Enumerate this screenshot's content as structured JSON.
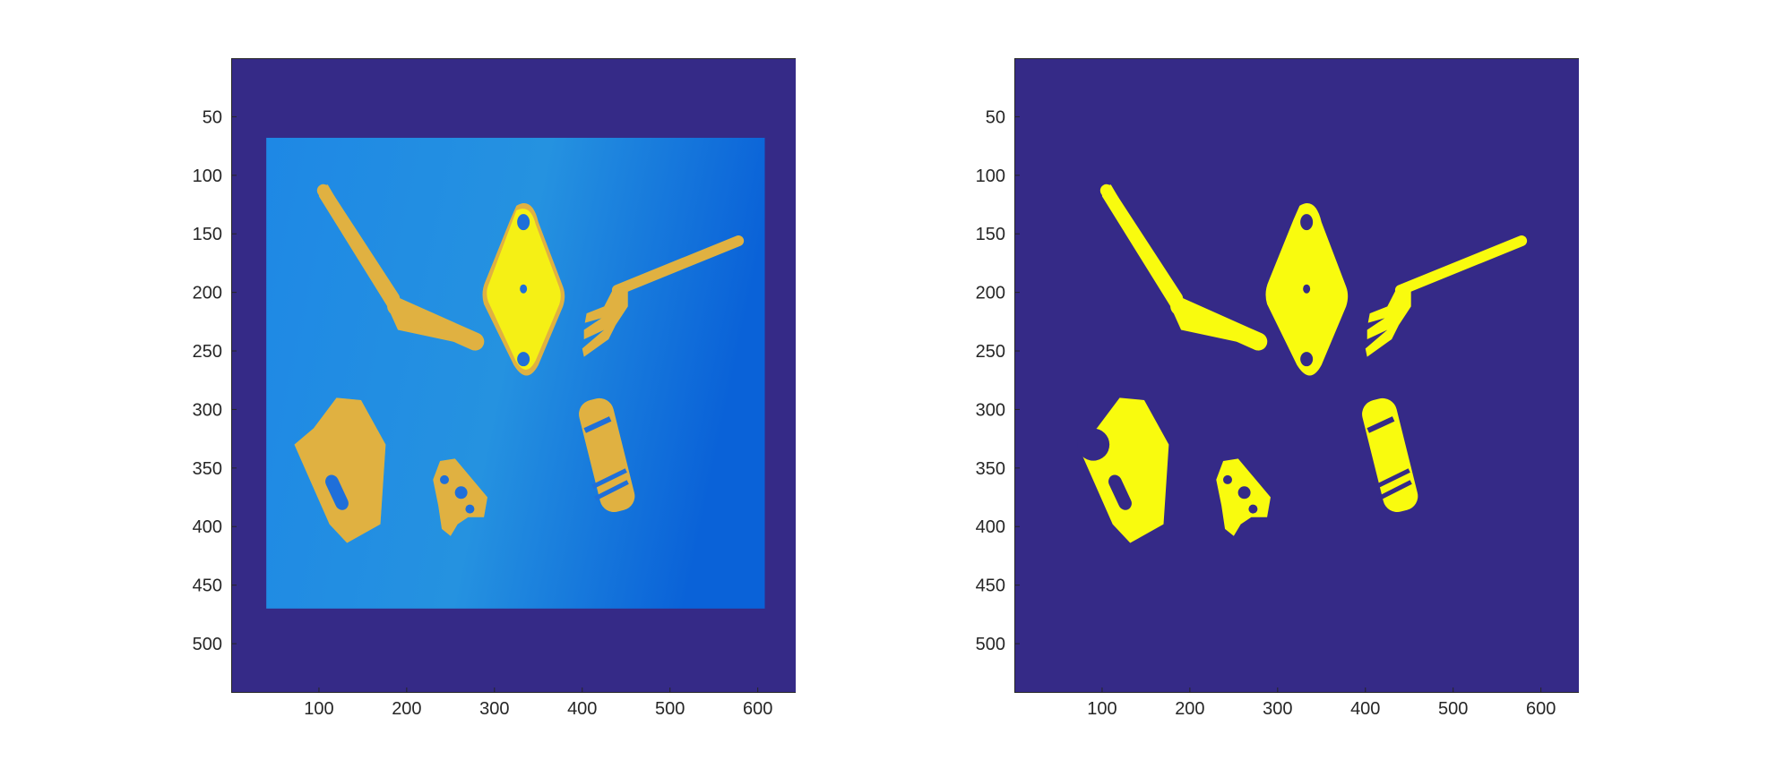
{
  "figure": {
    "background": "#ffffff",
    "colors": {
      "frame_bg": "#352A87",
      "scene_bg_light": "#1E88E5",
      "scene_bg_dark": "#0A62D8",
      "object_warm": "#E0B141",
      "object_bright": "#F9FB0E",
      "mask_fg": "#F9FB0E",
      "axis": "#262626"
    },
    "axes_common": {
      "xlim": [
        0,
        680
      ],
      "ylim": [
        542,
        0
      ],
      "x_ticks": [
        100,
        200,
        300,
        400,
        500,
        600
      ],
      "y_ticks": [
        50,
        100,
        150,
        200,
        250,
        300,
        350,
        400,
        450,
        500
      ],
      "y_reversed": true
    },
    "panels": [
      {
        "id": "original",
        "kind": "image",
        "scene_extent": {
          "x": [
            40,
            608
          ],
          "y": [
            68,
            470
          ]
        }
      },
      {
        "id": "mask",
        "kind": "binary-mask"
      }
    ],
    "objects": [
      "knife",
      "diamond-plate",
      "fork",
      "plate-with-slot",
      "triangle-bracket",
      "cylinder"
    ]
  }
}
